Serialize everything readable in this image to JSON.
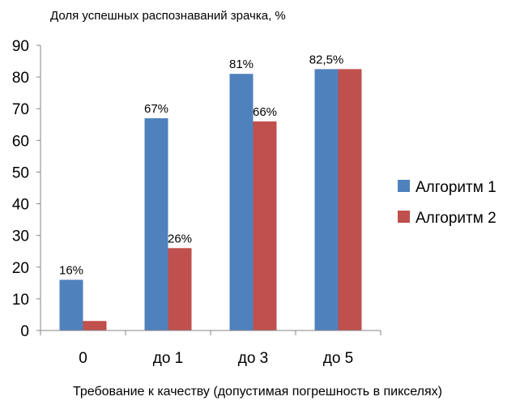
{
  "chart_data": {
    "type": "bar",
    "title": "Доля успешных распознаваний зрачка, %",
    "xlabel": "Требование к качеству (допустимая погрешность в пикселях)",
    "ylabel": "",
    "categories": [
      "0",
      "до 1",
      "до 3",
      "до 5"
    ],
    "ylim": [
      0,
      90
    ],
    "yticks": [
      "0",
      "10",
      "20",
      "30",
      "40",
      "50",
      "60",
      "70",
      "80",
      "90"
    ],
    "grid": false,
    "legend_position": "right",
    "series": [
      {
        "name": "Алгоритм 1",
        "color": "#4f81bd",
        "values": [
          16,
          67,
          81,
          82.5
        ],
        "labels": [
          "16%",
          "67%",
          "81%",
          "82,5%"
        ]
      },
      {
        "name": "Алгоритм 2",
        "color": "#c0504d",
        "values": [
          3,
          26,
          66,
          82.5
        ],
        "labels": [
          "",
          "26%",
          "66%",
          ""
        ]
      }
    ]
  }
}
